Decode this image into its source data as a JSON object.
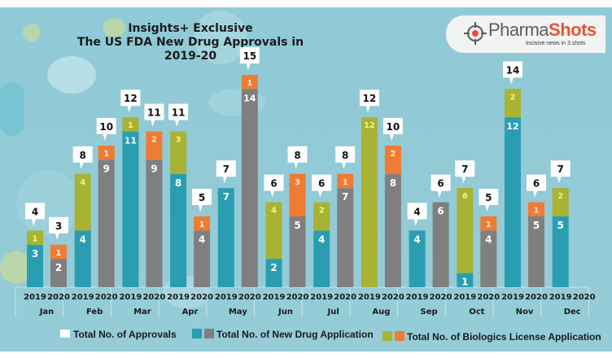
{
  "header": {
    "title_line1": "Insights+ Exclusive",
    "title_line2": "The US FDA New Drug Approvals in 2019-20"
  },
  "logo": {
    "brand_part1": "Pharma",
    "brand_part2": "Shots",
    "tagline": "Incisive news in 3 shots",
    "icon": "crosshair-target-icon"
  },
  "legend": {
    "approvals": "Total No. of Approvals",
    "nda": "Total No. of New Drug Application",
    "bla": "Total No. of Biologics License Application"
  },
  "colors": {
    "nda_2019": "#2a9db0",
    "nda_2020": "#7f7f80",
    "bla_2019": "#a8b233",
    "bla_2020": "#f07b33",
    "callout": "#ffffff"
  },
  "chart_data": {
    "type": "bar",
    "stacked": true,
    "title": "The US FDA New Drug Approvals in 2019-20",
    "subtitle": "Insights+ Exclusive",
    "xlabel": "",
    "ylabel": "",
    "ylim": [
      0,
      16
    ],
    "grid": false,
    "legend_position": "bottom",
    "categories": [
      "Jan",
      "Feb",
      "Mar",
      "Apr",
      "May",
      "Jun",
      "Jul",
      "Aug",
      "Sep",
      "Oct",
      "Nov",
      "Dec"
    ],
    "years": [
      "2019",
      "2020"
    ],
    "series": [
      {
        "name": "Total No. of New Drug Application",
        "year": "2019",
        "values": [
          3,
          4,
          11,
          8,
          7,
          2,
          4,
          0,
          4,
          1,
          12,
          5
        ]
      },
      {
        "name": "Total No. of Biologics License Application",
        "year": "2019",
        "values": [
          1,
          4,
          1,
          3,
          0,
          4,
          2,
          12,
          0,
          6,
          2,
          2
        ]
      },
      {
        "name": "Total No. of New Drug Application",
        "year": "2020",
        "values": [
          2,
          9,
          9,
          4,
          14,
          5,
          7,
          8,
          6,
          4,
          5,
          null
        ]
      },
      {
        "name": "Total No. of Biologics License Application",
        "year": "2020",
        "values": [
          1,
          1,
          2,
          1,
          1,
          3,
          1,
          2,
          0,
          1,
          1,
          null
        ]
      }
    ],
    "totals": {
      "2019": [
        4,
        8,
        12,
        11,
        7,
        6,
        6,
        12,
        4,
        7,
        14,
        7
      ],
      "2020": [
        3,
        10,
        11,
        5,
        15,
        8,
        8,
        10,
        6,
        5,
        6,
        null
      ]
    }
  }
}
